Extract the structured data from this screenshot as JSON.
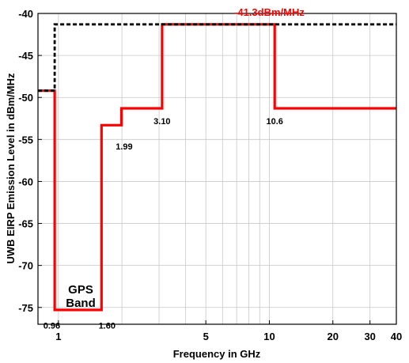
{
  "chart_data": {
    "type": "line",
    "xlabel": "Frequency in GHz",
    "ylabel": "UWB EIRP Emission Level in dBm/MHz",
    "x_scale": "log",
    "xlim": [
      0.8,
      40
    ],
    "ylim": [
      -77,
      -40
    ],
    "grid": true,
    "x_ticks": [
      {
        "value": 1,
        "label": "1"
      },
      {
        "value": 5,
        "label": "5"
      },
      {
        "value": 10,
        "label": "10"
      },
      {
        "value": 20,
        "label": "20"
      },
      {
        "value": 30,
        "label": "30"
      },
      {
        "value": 40,
        "label": "40"
      }
    ],
    "x_minor_grid": [
      2,
      3,
      4,
      6,
      7,
      8,
      9
    ],
    "y_ticks": [
      -40,
      -45,
      -50,
      -55,
      -60,
      -65,
      -70,
      -75
    ],
    "series": [
      {
        "color": "#ff0000",
        "style": "solid",
        "x": [
          0.8,
          0.96,
          0.96,
          1.6,
          1.6,
          1.99,
          1.99,
          3.1,
          3.1,
          10.6,
          10.6,
          40
        ],
        "y": [
          -49.2,
          -49.2,
          -75.3,
          -75.3,
          -53.3,
          -53.3,
          -51.3,
          -51.3,
          -41.3,
          -41.3,
          -51.3,
          -51.3
        ]
      },
      {
        "color": "#000000",
        "style": "dashed",
        "x": [
          0.8,
          0.96,
          0.96,
          40
        ],
        "y": [
          -49.2,
          -49.2,
          -41.3,
          -41.3
        ]
      }
    ],
    "annotations": [
      {
        "text": "-41.3dBm/MHz",
        "x": 10,
        "y": -40.3,
        "color": "#ff0000"
      },
      {
        "text": "0.96",
        "x": 0.93,
        "y": -77.5,
        "color": "#000000"
      },
      {
        "text": "1.60",
        "x": 1.7,
        "y": -77.5,
        "color": "#000000"
      },
      {
        "text": "1.99",
        "x": 2.05,
        "y": -56.2,
        "color": "#000000"
      },
      {
        "text": "3.10",
        "x": 3.1,
        "y": -53.2,
        "color": "#000000"
      },
      {
        "text": "10.6",
        "x": 10.6,
        "y": -53.2,
        "color": "#000000"
      }
    ],
    "gps_label": [
      "GPS",
      "Band"
    ]
  }
}
